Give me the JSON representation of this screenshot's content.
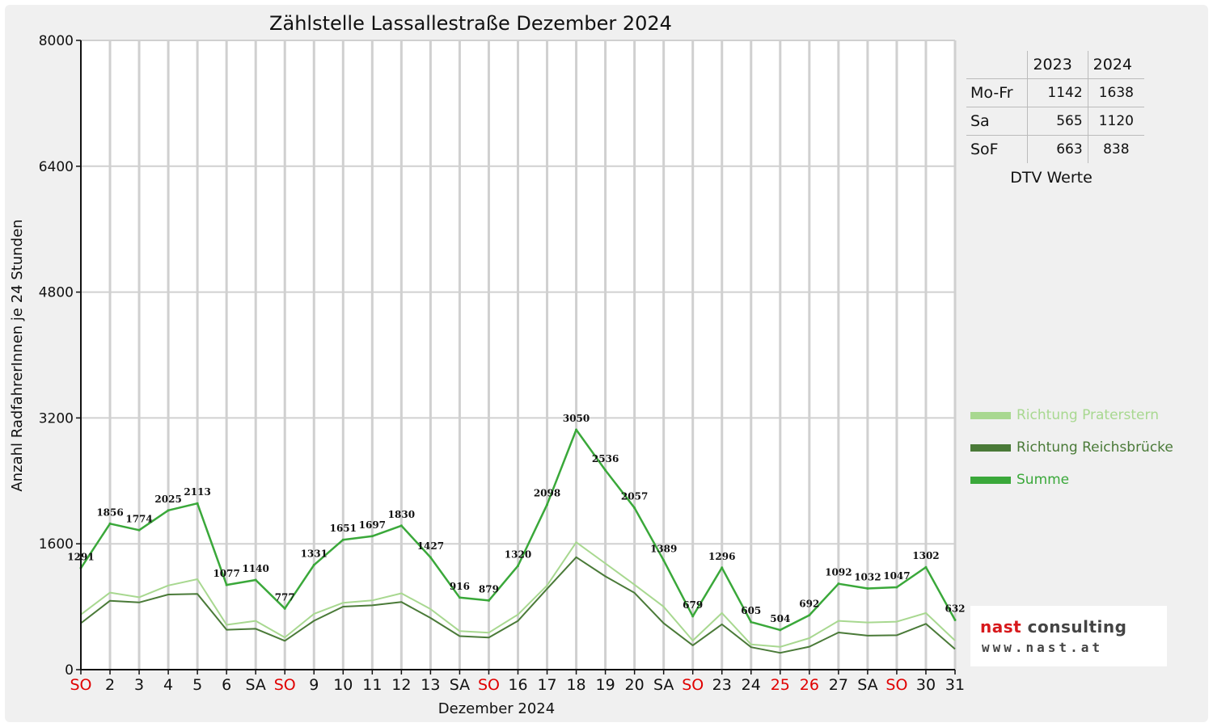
{
  "chart_data": {
    "type": "line",
    "title": "Zählstelle Lassallestraße Dezember 2024",
    "xlabel": "Dezember 2024",
    "ylabel": "Anzahl RadfahrerInnen je 24 Stunden",
    "ylim": [
      0,
      8000
    ],
    "yticks": [
      0,
      1600,
      3200,
      4800,
      6400,
      8000
    ],
    "grid": true,
    "legend_position": "right",
    "categories": [
      "SO",
      "2",
      "3",
      "4",
      "5",
      "6",
      "SA",
      "SO",
      "9",
      "10",
      "11",
      "12",
      "13",
      "SA",
      "SO",
      "16",
      "17",
      "18",
      "19",
      "20",
      "SA",
      "SO",
      "23",
      "24",
      "25",
      "26",
      "27",
      "SA",
      "SO",
      "30",
      "31"
    ],
    "category_colors": [
      "#e00000",
      "#111111",
      "#111111",
      "#111111",
      "#111111",
      "#111111",
      "#111111",
      "#e00000",
      "#111111",
      "#111111",
      "#111111",
      "#111111",
      "#111111",
      "#111111",
      "#e00000",
      "#111111",
      "#111111",
      "#111111",
      "#111111",
      "#111111",
      "#111111",
      "#e00000",
      "#111111",
      "#111111",
      "#e00000",
      "#e00000",
      "#111111",
      "#111111",
      "#e00000",
      "#111111",
      "#111111"
    ],
    "series": [
      {
        "name": "Richtung Praterstern",
        "color": "#a8d890",
        "values": [
          700,
          980,
          920,
          1070,
          1150,
          570,
          620,
          410,
          710,
          850,
          880,
          970,
          770,
          490,
          470,
          700,
          1070,
          1620,
          1350,
          1080,
          800,
          370,
          720,
          320,
          290,
          400,
          620,
          600,
          610,
          720,
          370
        ]
      },
      {
        "name": "Richtung Reichsbrücke",
        "color": "#4a7a38",
        "values": [
          591,
          876,
          854,
          955,
          963,
          507,
          520,
          367,
          621,
          801,
          817,
          860,
          657,
          426,
          409,
          620,
          1028,
          1430,
          1186,
          977,
          589,
          309,
          576,
          285,
          214,
          292,
          472,
          432,
          437,
          582,
          262
        ]
      },
      {
        "name": "Summe",
        "color": "#3aa83a",
        "values": [
          1291,
          1856,
          1774,
          2025,
          2113,
          1077,
          1140,
          777,
          1331,
          1651,
          1697,
          1830,
          1427,
          916,
          879,
          1320,
          2098,
          3050,
          2536,
          2057,
          1389,
          679,
          1296,
          605,
          504,
          692,
          1092,
          1032,
          1047,
          1302,
          632
        ]
      }
    ],
    "data_labels": [
      "1291",
      "1856",
      "1774",
      "2025",
      "2113",
      "1077",
      "1140",
      "777",
      "1331",
      "1651",
      "1697",
      "1830",
      "1427",
      "916",
      "879",
      "1320",
      "2098",
      "3050",
      "2536",
      "2057",
      "1389",
      "679",
      "1296",
      "605",
      "504",
      "692",
      "1092",
      "1032",
      "1047",
      "1302",
      "632"
    ]
  },
  "dtv_table": {
    "headers": [
      "",
      "2023",
      "2024"
    ],
    "rows": [
      {
        "label": "Mo-Fr",
        "v2023": "1142",
        "v2024": "1638"
      },
      {
        "label": "Sa",
        "v2023": "565",
        "v2024": "1120"
      },
      {
        "label": "SoF",
        "v2023": "663",
        "v2024": "838"
      }
    ],
    "caption": "DTV Werte"
  },
  "legend": [
    {
      "label": "Richtung Praterstern",
      "color": "#a8d890"
    },
    {
      "label": "Richtung Reichsbrücke",
      "color": "#4a7a38"
    },
    {
      "label": "Summe",
      "color": "#3aa83a"
    }
  ],
  "logo": {
    "brand_part1": "nast",
    "brand_part2": " consulting",
    "url": "www.nast.at"
  }
}
